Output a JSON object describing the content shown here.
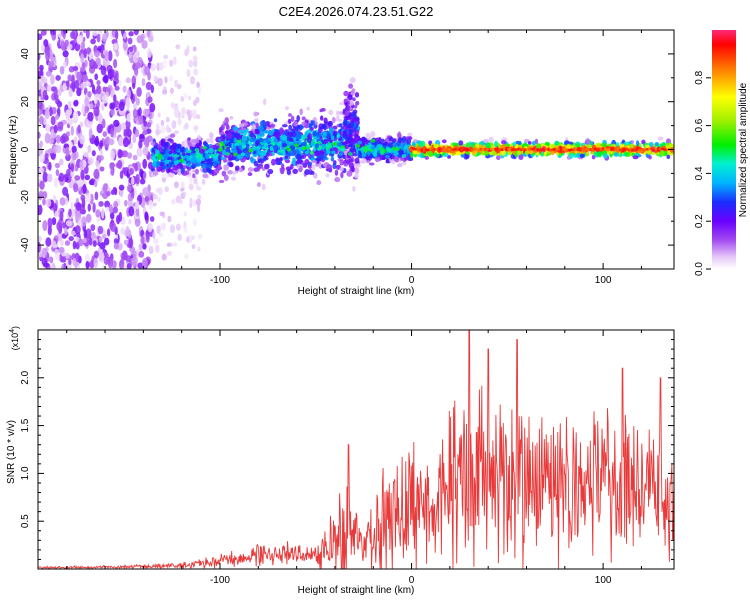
{
  "title": "C2E4.2026.074.23.51.G22",
  "colors": {
    "snr_line": "#e83a3a",
    "axis": "#000000",
    "background": "#ffffff"
  },
  "chart_data": [
    {
      "type": "heatmap",
      "name": "spectrogram",
      "xlabel": "Height of straight line (km)",
      "ylabel": "Frequency (Hz)",
      "xlim": [
        -195,
        137
      ],
      "ylim": [
        -50,
        50
      ],
      "x_ticks": [
        -100,
        0,
        100
      ],
      "x_tick_labels": [
        "-100",
        "0",
        "100"
      ],
      "y_ticks": [
        -40,
        -20,
        0,
        20,
        40
      ],
      "y_tick_labels": [
        "-40",
        "-20",
        "0",
        "20",
        "40"
      ],
      "colorbar": {
        "label": "Normalized spectral amplitude",
        "range": [
          0,
          1
        ],
        "ticks": [
          0.0,
          0.2,
          0.4,
          0.6,
          0.8
        ],
        "tick_labels": [
          "0.0",
          "0.2",
          "0.4",
          "0.6",
          "0.8"
        ]
      },
      "regions": [
        {
          "name": "noise",
          "x_range": [
            -195,
            -135
          ],
          "freq_spread": 50,
          "amplitude": 0.12
        },
        {
          "name": "sparse-noise",
          "x_range": [
            -135,
            -110
          ],
          "freq_spread": 45,
          "amplitude": 0.05
        },
        {
          "name": "onset",
          "x_range": [
            -135,
            -100
          ],
          "center_freq": -3,
          "freq_spread": 8,
          "amplitude": 0.3
        },
        {
          "name": "broad-signal",
          "x_range": [
            -100,
            -35
          ],
          "center_freq": 2,
          "freq_spread": 12,
          "amplitude": 0.3
        },
        {
          "name": "burst",
          "x_range": [
            -35,
            -28
          ],
          "center_freq": 8,
          "freq_spread": 20,
          "amplitude": 0.2
        },
        {
          "name": "transition",
          "x_range": [
            -28,
            0
          ],
          "center_freq": 0,
          "freq_spread": 5,
          "amplitude": 0.35
        },
        {
          "name": "narrowband-signal",
          "x_range": [
            0,
            137
          ],
          "center_freq": 0,
          "freq_spread": 3,
          "amplitude": 0.75
        }
      ]
    },
    {
      "type": "line",
      "name": "snr",
      "xlabel": "Height of straight line (km)",
      "ylabel": "SNR (10 * v/v)",
      "y_scale_label": "(x10",
      "y_scale_exponent": "4",
      "xlim": [
        -195,
        137
      ],
      "ylim": [
        0,
        2.5
      ],
      "x_ticks": [
        -100,
        0,
        100
      ],
      "x_tick_labels": [
        "-100",
        "0",
        "100"
      ],
      "y_ticks": [
        0.5,
        1.0,
        1.5,
        2.0
      ],
      "y_tick_labels": [
        "0.5",
        "1.0",
        "1.5",
        "2.0"
      ],
      "envelope": {
        "x": [
          -195,
          -160,
          -130,
          -110,
          -95,
          -80,
          -65,
          -50,
          -45,
          -40,
          -35,
          -30,
          -25,
          -20,
          -15,
          -10,
          -5,
          0,
          10,
          20,
          30,
          40,
          50,
          60,
          70,
          80,
          90,
          100,
          110,
          120,
          130,
          137
        ],
        "mean": [
          0.015,
          0.02,
          0.03,
          0.05,
          0.1,
          0.15,
          0.17,
          0.15,
          0.2,
          0.3,
          0.4,
          0.3,
          0.25,
          0.35,
          0.45,
          0.55,
          0.6,
          0.65,
          0.7,
          0.85,
          0.95,
          0.95,
          1.0,
          0.95,
          0.9,
          0.85,
          0.85,
          0.9,
          0.85,
          0.8,
          0.85,
          0.7
        ],
        "amplitude": [
          0.01,
          0.012,
          0.02,
          0.04,
          0.07,
          0.1,
          0.1,
          0.1,
          0.2,
          0.35,
          0.6,
          0.3,
          0.2,
          0.35,
          0.5,
          0.55,
          0.5,
          0.55,
          0.6,
          0.7,
          0.8,
          0.75,
          0.75,
          0.7,
          0.7,
          0.65,
          0.6,
          0.65,
          0.65,
          0.6,
          0.6,
          0.5
        ]
      },
      "peaks": [
        {
          "x": -33,
          "y": 1.3
        },
        {
          "x": 30,
          "y": 2.5
        },
        {
          "x": 40,
          "y": 2.3
        },
        {
          "x": 55,
          "y": 2.4
        },
        {
          "x": 110,
          "y": 2.1
        },
        {
          "x": 130,
          "y": 2.0
        }
      ]
    }
  ]
}
